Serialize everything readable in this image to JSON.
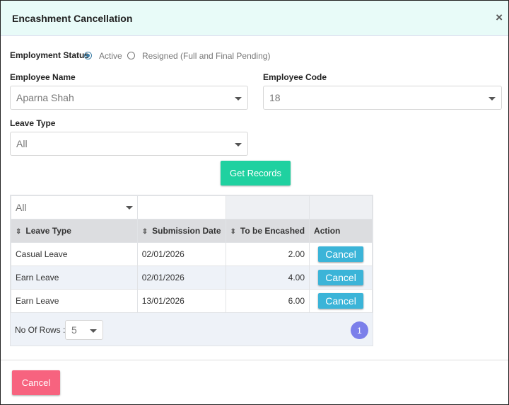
{
  "header": {
    "title": "Encashment Cancellation",
    "close": "×"
  },
  "form": {
    "employment_status": {
      "label": "Employment Status",
      "options": [
        "Active",
        "Resigned (Full and Final Pending)"
      ]
    },
    "employee_name": {
      "label": "Employee Name",
      "value": "Aparna Shah"
    },
    "employee_code": {
      "label": "Employee Code",
      "value": "18"
    },
    "leave_type": {
      "label": "Leave Type",
      "value": "All"
    },
    "submit": "Get Records"
  },
  "table": {
    "filter": "All",
    "columns": [
      "Leave Type",
      "Submission Date",
      "To be Encashed",
      "Action"
    ],
    "rows": [
      [
        "Casual Leave",
        "02/01/2026",
        "2.00",
        "Cancel"
      ],
      [
        "Earn Leave",
        "02/01/2026",
        "4.00",
        "Cancel"
      ],
      [
        "Earn Leave",
        "13/01/2026",
        "6.00",
        "Cancel"
      ]
    ]
  },
  "pager": {
    "label": "No Of Rows :",
    "rows_per_page": "5",
    "page": "1"
  },
  "footer": {
    "cancel": "Cancel"
  }
}
